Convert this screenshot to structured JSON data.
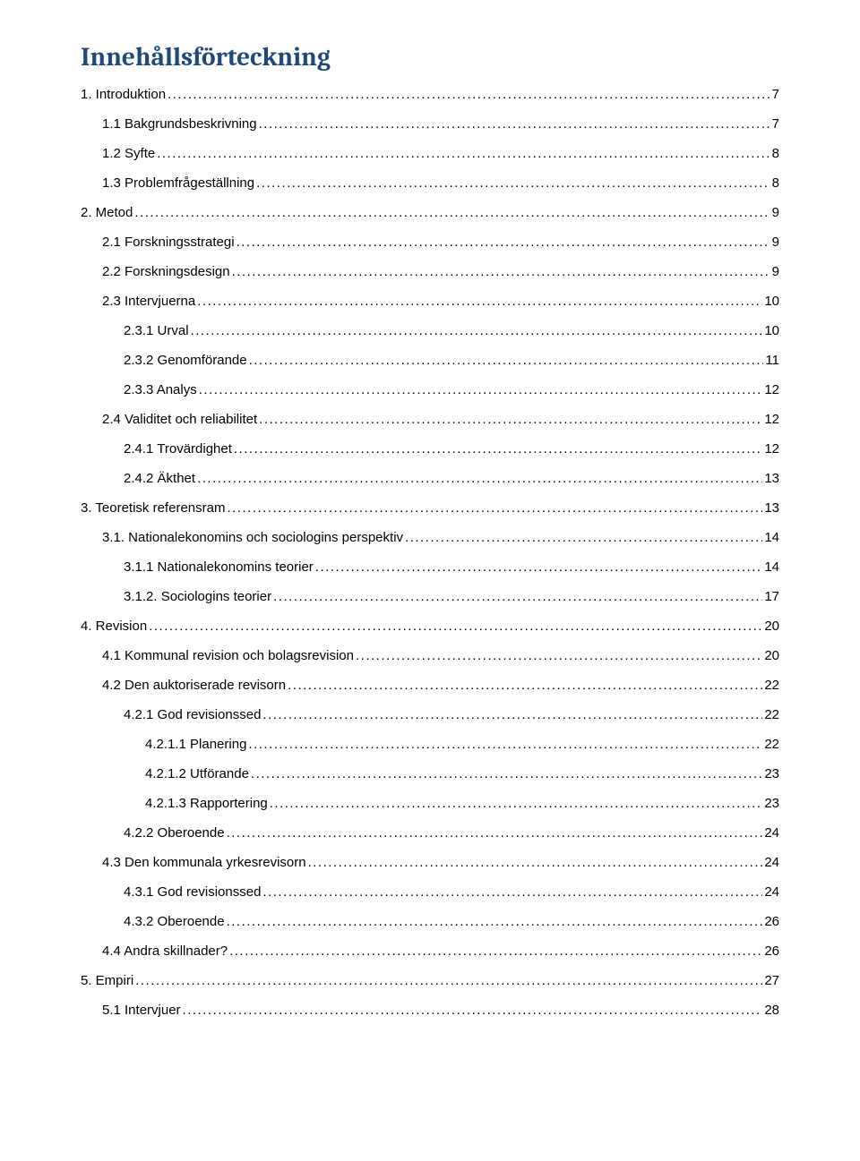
{
  "title": {
    "text": "Innehållsförteckning",
    "color": "#1f497d",
    "fontsize_pt": 22
  },
  "body": {
    "fontsize_pt": 11.5,
    "text_color": "#000000",
    "dot_color": "#000000"
  },
  "toc": [
    {
      "label": "1. Introduktion",
      "page": "7",
      "indent": 0
    },
    {
      "label": "1.1 Bakgrundsbeskrivning",
      "page": "7",
      "indent": 1
    },
    {
      "label": "1.2 Syfte",
      "page": "8",
      "indent": 1
    },
    {
      "label": "1.3 Problemfrågeställning",
      "page": "8",
      "indent": 1
    },
    {
      "label": "2. Metod",
      "page": "9",
      "indent": 0
    },
    {
      "label": "2.1 Forskningsstrategi",
      "page": "9",
      "indent": 1
    },
    {
      "label": "2.2 Forskningsdesign",
      "page": "9",
      "indent": 1
    },
    {
      "label": "2.3 Intervjuerna",
      "page": "10",
      "indent": 1
    },
    {
      "label": "2.3.1 Urval",
      "page": "10",
      "indent": 2
    },
    {
      "label": "2.3.2 Genomförande",
      "page": "11",
      "indent": 2
    },
    {
      "label": "2.3.3 Analys",
      "page": "12",
      "indent": 2
    },
    {
      "label": "2.4 Validitet och reliabilitet",
      "page": "12",
      "indent": 1
    },
    {
      "label": "2.4.1 Trovärdighet",
      "page": "12",
      "indent": 2
    },
    {
      "label": "2.4.2 Äkthet",
      "page": "13",
      "indent": 2
    },
    {
      "label": "3. Teoretisk referensram",
      "page": "13",
      "indent": 0
    },
    {
      "label": "3.1. Nationalekonomins och sociologins perspektiv",
      "page": "14",
      "indent": 1
    },
    {
      "label": "3.1.1 Nationalekonomins teorier",
      "page": "14",
      "indent": 2
    },
    {
      "label": "3.1.2. Sociologins teorier",
      "page": "17",
      "indent": 2
    },
    {
      "label": "4. Revision",
      "page": "20",
      "indent": 0
    },
    {
      "label": "4.1 Kommunal revision och bolagsrevision",
      "page": "20",
      "indent": 1
    },
    {
      "label": "4.2 Den auktoriserade revisorn",
      "page": "22",
      "indent": 1
    },
    {
      "label": "4.2.1 God revisionssed",
      "page": "22",
      "indent": 2
    },
    {
      "label": "4.2.1.1 Planering",
      "page": "22",
      "indent": 3
    },
    {
      "label": "4.2.1.2 Utförande",
      "page": "23",
      "indent": 3
    },
    {
      "label": "4.2.1.3 Rapportering",
      "page": "23",
      "indent": 3
    },
    {
      "label": "4.2.2 Oberoende",
      "page": "24",
      "indent": 2
    },
    {
      "label": "4.3 Den kommunala yrkesrevisorn",
      "page": "24",
      "indent": 1
    },
    {
      "label": "4.3.1 God revisionssed",
      "page": "24",
      "indent": 2
    },
    {
      "label": "4.3.2 Oberoende",
      "page": "26",
      "indent": 2
    },
    {
      "label": "4.4 Andra skillnader?",
      "page": "26",
      "indent": 1
    },
    {
      "label": "5. Empiri",
      "page": "27",
      "indent": 0
    },
    {
      "label": "5.1 Intervjuer",
      "page": "28",
      "indent": 1
    }
  ]
}
